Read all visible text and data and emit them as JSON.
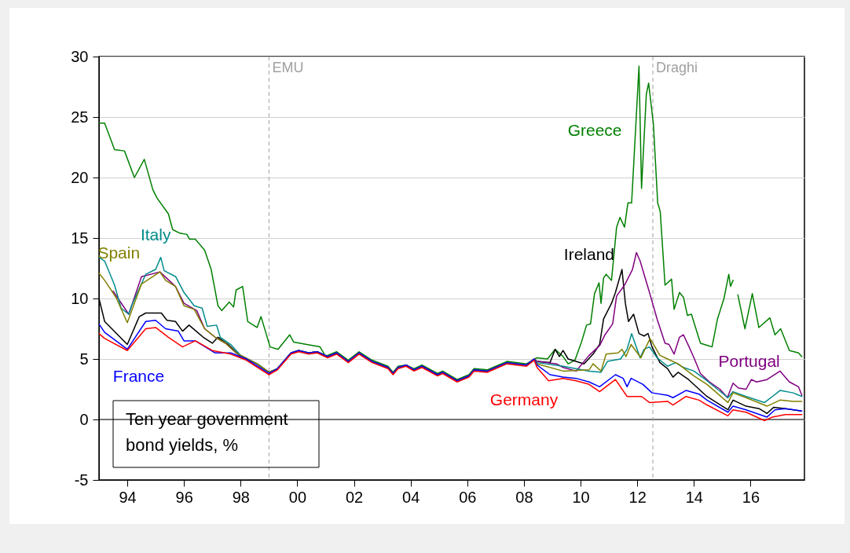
{
  "chart_data": {
    "type": "line",
    "annotations": [
      "Ten year government bond yields, %"
    ],
    "xlim": [
      1993,
      2017.9
    ],
    "xticks": [
      {
        "value": 1994,
        "label": "94"
      },
      {
        "value": 1996,
        "label": "96"
      },
      {
        "value": 1998,
        "label": "98"
      },
      {
        "value": 2000,
        "label": "00"
      },
      {
        "value": 2002,
        "label": "02"
      },
      {
        "value": 2004,
        "label": "04"
      },
      {
        "value": 2006,
        "label": "06"
      },
      {
        "value": 2008,
        "label": "08"
      },
      {
        "value": 2010,
        "label": "10"
      },
      {
        "value": 2012,
        "label": "12"
      },
      {
        "value": 2014,
        "label": "14"
      },
      {
        "value": 2016,
        "label": "16"
      }
    ],
    "ylim": [
      -5,
      30
    ],
    "yticks": [
      -5,
      0,
      5,
      10,
      15,
      20,
      25,
      30
    ],
    "grid": "y",
    "legend": false,
    "ref_lines": [
      {
        "axis": "y",
        "value": 0,
        "label": null,
        "color": "#000000",
        "line_style": "solid"
      },
      {
        "axis": "x",
        "value": 1999.0,
        "label": "EMU",
        "color": "#a0a0a0",
        "line_style": "dashed"
      },
      {
        "axis": "x",
        "value": 2012.55,
        "label": "Draghi",
        "color": "#a0a0a0",
        "line_style": "dashed"
      }
    ],
    "series": [
      {
        "name": "Greece",
        "color": "#008000",
        "x": [
          1993.0,
          1993.2,
          1993.55,
          1993.9,
          1994.25,
          1994.6,
          1994.9,
          1995.05,
          1995.45,
          1995.6,
          1995.85,
          1996.1,
          1996.2,
          1996.4,
          1996.73,
          1996.96,
          1997.2,
          1997.33,
          1997.6,
          1997.75,
          1997.84,
          1998.07,
          1998.25,
          1998.58,
          1998.72,
          1999.04,
          1999.32,
          1999.73,
          1999.87,
          2000.33,
          2000.8,
          2000.98,
          2001.07,
          2001.39,
          2001.8,
          2002.18,
          2002.64,
          2003.2,
          2003.38,
          2003.56,
          2003.84,
          2004.12,
          2004.4,
          2004.95,
          2005.13,
          2005.64,
          2006.06,
          2006.24,
          2006.7,
          2007.4,
          2008.09,
          2008.46,
          2008.83,
          2009.1,
          2009.38,
          2009.56,
          2009.8,
          2010.03,
          2010.21,
          2010.35,
          2010.49,
          2010.65,
          2010.72,
          2010.81,
          2010.9,
          2011.09,
          2011.27,
          2011.39,
          2011.55,
          2011.67,
          2011.8,
          2011.95,
          2012.06,
          2012.15,
          2012.32,
          2012.4,
          2012.57,
          2012.72,
          2012.81,
          2012.98,
          2013.21,
          2013.3,
          2013.49,
          2013.63,
          2013.77,
          2013.91,
          2014.23,
          2014.5,
          2014.64,
          2014.83,
          2015.06,
          2015.23,
          2015.29,
          2015.38,
          2015.46,
          2015.55,
          2015.8,
          2016.06,
          2016.29,
          2016.68,
          2016.86,
          2017.06,
          2017.37,
          2017.69,
          2017.81
        ],
        "values": [
          24.5,
          24.5,
          22.3,
          22.2,
          20.0,
          21.5,
          19.0,
          18.3,
          17.0,
          15.7,
          15.4,
          15.3,
          14.9,
          14.9,
          14.0,
          12.4,
          9.4,
          9.0,
          9.7,
          9.3,
          10.7,
          11.0,
          8.1,
          7.6,
          8.5,
          6.0,
          5.8,
          7.0,
          6.4,
          6.2,
          6.0,
          5.3,
          5.3,
          5.6,
          4.9,
          5.6,
          4.9,
          4.4,
          3.9,
          4.4,
          4.5,
          4.2,
          4.5,
          3.8,
          4.0,
          3.3,
          3.7,
          4.2,
          4.1,
          4.8,
          4.6,
          5.1,
          5.0,
          5.8,
          5.2,
          4.6,
          4.9,
          6.4,
          7.8,
          7.9,
          10.4,
          11.3,
          9.6,
          11.7,
          12.0,
          11.5,
          15.9,
          16.7,
          15.9,
          17.9,
          17.9,
          24.4,
          29.2,
          19.1,
          26.9,
          27.8,
          24.4,
          17.9,
          17.2,
          11.1,
          11.6,
          9.1,
          10.5,
          10.1,
          8.6,
          8.7,
          6.3,
          6.1,
          6.0,
          8.3,
          10.0,
          12.0,
          11.0,
          11.5,
          null,
          10.3,
          7.5,
          10.4,
          7.6,
          8.4,
          7.0,
          7.5,
          5.7,
          5.5,
          5.2
        ]
      },
      {
        "name": "Ireland",
        "color": "#000000",
        "x": [
          1993.0,
          1993.2,
          1994.0,
          1994.42,
          1994.65,
          1995.2,
          1995.4,
          1995.7,
          1995.95,
          1996.18,
          1996.68,
          1997.0,
          1997.2,
          1997.56,
          1998.0,
          1998.58,
          1999.0,
          1999.3,
          1999.78,
          2000.05,
          2000.4,
          2000.7,
          2001.07,
          2001.39,
          2001.8,
          2002.18,
          2002.64,
          2003.2,
          2003.38,
          2003.56,
          2003.84,
          2004.12,
          2004.4,
          2004.95,
          2005.13,
          2005.64,
          2006.06,
          2006.24,
          2006.7,
          2007.4,
          2008.09,
          2008.36,
          2008.46,
          2008.92,
          2009.1,
          2009.25,
          2009.38,
          2009.56,
          2010.12,
          2010.44,
          2010.67,
          2010.81,
          2011.09,
          2011.23,
          2011.46,
          2011.58,
          2011.69,
          2011.87,
          2012.06,
          2012.24,
          2012.38,
          2012.52,
          2012.8,
          2013.07,
          2013.26,
          2013.44,
          2013.81,
          2014.46,
          2015.2,
          2015.38,
          2015.84,
          2016.3,
          2016.58,
          2016.81,
          2017.23,
          2017.78
        ],
        "values": [
          10.0,
          8.1,
          6.2,
          8.5,
          8.8,
          8.8,
          8.2,
          8.1,
          7.3,
          7.8,
          6.8,
          6.3,
          6.8,
          6.2,
          5.2,
          4.6,
          3.9,
          4.2,
          5.5,
          5.7,
          5.5,
          5.6,
          5.2,
          5.5,
          4.8,
          5.5,
          4.8,
          4.3,
          3.8,
          4.3,
          4.5,
          4.1,
          4.4,
          3.7,
          3.9,
          3.2,
          3.6,
          4.1,
          4.0,
          4.7,
          4.5,
          5.0,
          4.8,
          4.7,
          5.8,
          5.2,
          5.7,
          5.0,
          4.6,
          5.4,
          6.2,
          8.3,
          9.6,
          10.5,
          12.4,
          9.6,
          8.1,
          8.7,
          7.1,
          6.9,
          7.1,
          6.0,
          4.7,
          4.2,
          3.5,
          3.9,
          3.3,
          1.9,
          0.8,
          1.6,
          1.1,
          0.9,
          0.5,
          1.0,
          0.9,
          0.7
        ]
      },
      {
        "name": "Portugal",
        "color": "#800080",
        "x": [
          1993.5,
          1994.05,
          1994.5,
          1995.15,
          1995.7,
          1996.0,
          1996.45,
          1996.73,
          1997.1,
          1997.47,
          1997.84,
          1998.58,
          1999.0,
          1999.3,
          1999.78,
          2000.05,
          2000.4,
          2000.7,
          2001.07,
          2001.39,
          2001.8,
          2002.18,
          2002.64,
          2003.2,
          2003.38,
          2003.56,
          2003.84,
          2004.12,
          2004.4,
          2004.95,
          2005.13,
          2005.64,
          2006.06,
          2006.24,
          2006.7,
          2007.4,
          2008.09,
          2008.36,
          2008.46,
          2009.15,
          2009.38,
          2009.84,
          2010.3,
          2010.67,
          2010.86,
          2011.13,
          2011.27,
          2011.55,
          2011.83,
          2011.97,
          2012.1,
          2012.24,
          2012.43,
          2012.7,
          2012.98,
          2013.12,
          2013.3,
          2013.49,
          2013.63,
          2013.81,
          2014.0,
          2014.23,
          2014.55,
          2014.92,
          2015.18,
          2015.38,
          2015.57,
          2015.84,
          2016.03,
          2016.21,
          2016.58,
          2017.04,
          2017.37,
          2017.69,
          2017.81
        ],
        "values": [
          10.6,
          8.7,
          11.8,
          12.2,
          11.0,
          9.6,
          9.0,
          7.5,
          6.8,
          6.3,
          5.5,
          4.6,
          3.9,
          4.2,
          5.5,
          5.7,
          5.5,
          5.6,
          5.2,
          5.5,
          4.8,
          5.5,
          4.8,
          4.3,
          3.8,
          4.3,
          4.5,
          4.1,
          4.4,
          3.7,
          3.9,
          3.2,
          3.6,
          4.1,
          4.0,
          4.7,
          4.5,
          5.0,
          4.8,
          4.6,
          4.3,
          4.0,
          5.3,
          6.1,
          7.0,
          7.9,
          10.2,
          11.1,
          12.4,
          13.8,
          13.1,
          12.0,
          10.5,
          8.3,
          6.3,
          6.2,
          5.4,
          6.8,
          7.0,
          6.1,
          5.1,
          3.8,
          3.1,
          2.5,
          1.8,
          3.0,
          2.6,
          2.5,
          3.3,
          3.1,
          3.3,
          4.0,
          3.1,
          2.7,
          2.0
        ]
      },
      {
        "name": "Italy",
        "color": "#008b8b",
        "x": [
          1993.0,
          1993.2,
          1993.55,
          1993.78,
          1994.05,
          1994.15,
          1994.65,
          1995.0,
          1995.18,
          1995.3,
          1995.71,
          1996.0,
          1996.36,
          1996.64,
          1996.82,
          1997.15,
          1997.28,
          1997.65,
          1998.0,
          1998.58,
          1998.99,
          1999.3,
          1999.78,
          2000.05,
          2000.4,
          2000.7,
          2001.07,
          2001.39,
          2001.8,
          2002.18,
          2002.64,
          2003.2,
          2003.38,
          2003.56,
          2003.84,
          2004.12,
          2004.4,
          2004.95,
          2005.13,
          2005.64,
          2006.06,
          2006.24,
          2006.7,
          2007.4,
          2008.09,
          2008.36,
          2008.46,
          2009.38,
          2010.3,
          2010.72,
          2010.95,
          2011.41,
          2011.64,
          2011.8,
          2012.1,
          2012.24,
          2012.43,
          2012.7,
          2013.07,
          2013.35,
          2013.63,
          2014.0,
          2014.46,
          2015.2,
          2015.38,
          2015.84,
          2016.49,
          2016.77,
          2017.04,
          2017.5,
          2017.81
        ],
        "values": [
          13.4,
          13.1,
          11.1,
          9.2,
          8.7,
          9.4,
          12.0,
          12.4,
          13.4,
          12.3,
          11.8,
          10.5,
          9.4,
          9.2,
          7.7,
          7.8,
          6.8,
          6.2,
          5.3,
          4.6,
          3.9,
          4.2,
          5.5,
          5.7,
          5.5,
          5.6,
          5.2,
          5.5,
          4.8,
          5.5,
          4.8,
          4.3,
          3.8,
          4.3,
          4.5,
          4.1,
          4.4,
          3.7,
          3.9,
          3.2,
          3.6,
          4.1,
          4.0,
          4.7,
          4.5,
          5.0,
          4.7,
          4.4,
          4.0,
          3.9,
          4.8,
          5.0,
          5.8,
          7.1,
          5.1,
          5.8,
          6.0,
          5.1,
          4.4,
          4.7,
          4.3,
          4.0,
          3.2,
          1.8,
          2.3,
          1.9,
          1.4,
          1.9,
          2.4,
          2.2,
          1.9
        ]
      },
      {
        "name": "Spain",
        "color": "#808000",
        "x": [
          1993.0,
          1993.2,
          1993.6,
          1994.0,
          1994.5,
          1995.15,
          1995.35,
          1995.7,
          1996.0,
          1996.36,
          1996.73,
          1997.1,
          1997.47,
          1997.84,
          1998.58,
          1999.0,
          1999.3,
          1999.78,
          2000.05,
          2000.4,
          2000.7,
          2001.07,
          2001.39,
          2001.8,
          2002.18,
          2002.64,
          2003.2,
          2003.38,
          2003.56,
          2003.84,
          2004.12,
          2004.4,
          2004.95,
          2005.13,
          2005.64,
          2006.06,
          2006.24,
          2006.7,
          2007.4,
          2008.09,
          2008.36,
          2008.46,
          2009.38,
          2010.3,
          2010.44,
          2010.72,
          2010.9,
          2011.32,
          2011.46,
          2011.6,
          2011.78,
          2012.13,
          2012.45,
          2012.8,
          2013.07,
          2013.44,
          2014.0,
          2014.46,
          2015.2,
          2015.38,
          2015.84,
          2016.58,
          2017.04,
          2017.5,
          2017.81
        ],
        "values": [
          12.1,
          11.5,
          10.1,
          8.0,
          11.2,
          12.2,
          11.5,
          11.0,
          9.4,
          9.1,
          7.5,
          6.8,
          6.3,
          5.5,
          4.6,
          3.9,
          4.2,
          5.5,
          5.7,
          5.5,
          5.6,
          5.2,
          5.5,
          4.8,
          5.5,
          4.8,
          4.3,
          3.8,
          4.3,
          4.5,
          4.1,
          4.4,
          3.7,
          3.9,
          3.2,
          3.6,
          4.1,
          4.0,
          4.7,
          4.5,
          5.0,
          4.6,
          4.0,
          4.1,
          4.6,
          4.0,
          5.4,
          5.5,
          5.8,
          5.2,
          6.2,
          5.1,
          6.7,
          5.3,
          5.0,
          4.6,
          3.6,
          2.9,
          1.4,
          2.2,
          1.8,
          1.1,
          1.6,
          1.5,
          1.5
        ]
      },
      {
        "name": "France",
        "color": "#0000ff",
        "x": [
          1993.0,
          1993.2,
          1994.0,
          1994.65,
          1995.0,
          1995.35,
          1995.8,
          1996.0,
          1996.4,
          1997.1,
          1997.65,
          1998.2,
          1999.0,
          1999.3,
          1999.78,
          2000.05,
          2000.4,
          2000.7,
          2001.07,
          2001.39,
          2001.8,
          2002.18,
          2002.64,
          2003.2,
          2003.38,
          2003.56,
          2003.84,
          2004.12,
          2004.4,
          2004.95,
          2005.13,
          2005.64,
          2006.06,
          2006.24,
          2006.7,
          2007.4,
          2008.09,
          2008.36,
          2008.46,
          2008.92,
          2009.38,
          2009.84,
          2010.3,
          2010.67,
          2011.23,
          2011.5,
          2011.64,
          2011.78,
          2012.2,
          2012.52,
          2013.07,
          2013.26,
          2013.72,
          2014.18,
          2014.46,
          2015.2,
          2015.38,
          2015.84,
          2016.58,
          2016.86,
          2017.23,
          2017.81
        ],
        "values": [
          7.9,
          7.2,
          5.8,
          8.1,
          8.2,
          7.5,
          7.3,
          6.5,
          6.5,
          5.5,
          5.5,
          5.0,
          3.8,
          4.2,
          5.5,
          5.7,
          5.5,
          5.6,
          5.2,
          5.5,
          4.8,
          5.5,
          4.8,
          4.3,
          3.8,
          4.3,
          4.5,
          4.1,
          4.4,
          3.7,
          3.9,
          3.2,
          3.6,
          4.1,
          4.0,
          4.7,
          4.5,
          5.0,
          4.5,
          3.7,
          3.5,
          3.4,
          3.1,
          2.7,
          3.7,
          3.4,
          2.7,
          3.4,
          2.9,
          2.2,
          2.0,
          1.8,
          2.4,
          2.1,
          1.6,
          0.6,
          1.1,
          0.8,
          0.2,
          0.8,
          0.9,
          0.7
        ]
      },
      {
        "name": "Germany",
        "color": "#ff0000",
        "x": [
          1993.0,
          1993.2,
          1994.0,
          1994.65,
          1995.0,
          1995.45,
          1995.95,
          1996.4,
          1997.0,
          1997.65,
          1998.2,
          1999.0,
          1999.3,
          1999.78,
          2000.05,
          2000.4,
          2000.7,
          2001.07,
          2001.39,
          2001.8,
          2002.18,
          2002.64,
          2003.2,
          2003.38,
          2003.56,
          2003.84,
          2004.12,
          2004.4,
          2004.95,
          2005.13,
          2005.64,
          2006.06,
          2006.24,
          2006.7,
          2007.4,
          2008.09,
          2008.36,
          2008.46,
          2008.87,
          2009.38,
          2009.84,
          2010.3,
          2010.67,
          2011.23,
          2011.64,
          2012.15,
          2012.43,
          2013.07,
          2013.26,
          2013.72,
          2014.18,
          2014.46,
          2015.2,
          2015.38,
          2015.84,
          2016.49,
          2016.77,
          2017.23,
          2017.81
        ],
        "values": [
          7.1,
          6.7,
          5.7,
          7.5,
          7.6,
          6.8,
          6.0,
          6.5,
          5.7,
          5.4,
          4.9,
          3.7,
          4.1,
          5.4,
          5.6,
          5.4,
          5.5,
          5.1,
          5.4,
          4.7,
          5.4,
          4.7,
          4.2,
          3.7,
          4.2,
          4.4,
          4.0,
          4.3,
          3.6,
          3.8,
          3.1,
          3.5,
          4.0,
          3.9,
          4.6,
          4.4,
          4.9,
          4.3,
          3.2,
          3.4,
          3.2,
          2.9,
          2.3,
          3.3,
          1.9,
          1.9,
          1.4,
          1.5,
          1.2,
          1.9,
          1.6,
          1.2,
          0.3,
          0.8,
          0.6,
          -0.1,
          0.2,
          0.4,
          0.4
        ]
      }
    ]
  }
}
